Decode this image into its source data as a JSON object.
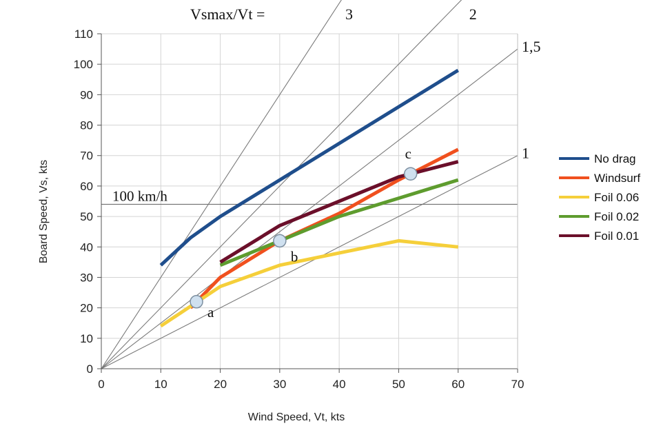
{
  "chart_data": {
    "type": "line",
    "header_label": "Vsmax/Vt =",
    "xlabel": "Wind Speed, Vt, kts",
    "ylabel": "Board Speed, Vs, kts",
    "xlim": [
      0,
      70
    ],
    "ylim": [
      0,
      110
    ],
    "x_ticks": [
      0,
      10,
      20,
      30,
      40,
      50,
      60,
      70
    ],
    "y_ticks": [
      0,
      10,
      20,
      30,
      40,
      50,
      60,
      70,
      80,
      90,
      100,
      110
    ],
    "grid": true,
    "legend_position": "right",
    "ratio_lines": [
      {
        "ratio": 3,
        "label": "3"
      },
      {
        "ratio": 2,
        "label": "2"
      },
      {
        "ratio": 1.5,
        "label": "1,5"
      },
      {
        "ratio": 1,
        "label": "1"
      }
    ],
    "reference_line": {
      "y": 54,
      "label": "100 km/h"
    },
    "series": [
      {
        "name": "No drag",
        "color": "#1f4e8c",
        "x": [
          10,
          15,
          20,
          30,
          40,
          50,
          60
        ],
        "y": [
          34,
          43,
          50,
          62,
          74,
          86,
          98
        ]
      },
      {
        "name": "Windsurf",
        "color": "#f0501e",
        "x": [
          15,
          20,
          30,
          40,
          50,
          60
        ],
        "y": [
          20,
          30,
          42,
          51,
          62,
          72
        ]
      },
      {
        "name": "Foil 0.06",
        "color": "#f5cf3a",
        "x": [
          10,
          20,
          30,
          40,
          50,
          60
        ],
        "y": [
          14,
          27,
          34,
          38,
          42,
          40
        ]
      },
      {
        "name": "Foil 0.02",
        "color": "#5e9c2e",
        "x": [
          20,
          30,
          40,
          50,
          60
        ],
        "y": [
          34,
          42,
          50,
          56,
          62
        ]
      },
      {
        "name": "Foil 0.01",
        "color": "#6b0f2a",
        "x": [
          20,
          30,
          40,
          50,
          60
        ],
        "y": [
          35,
          47,
          55,
          63,
          68
        ]
      }
    ],
    "annotations": [
      {
        "label": "a",
        "x": 16,
        "y": 22
      },
      {
        "label": "b",
        "x": 30,
        "y": 42
      },
      {
        "label": "c",
        "x": 52,
        "y": 64
      }
    ]
  }
}
